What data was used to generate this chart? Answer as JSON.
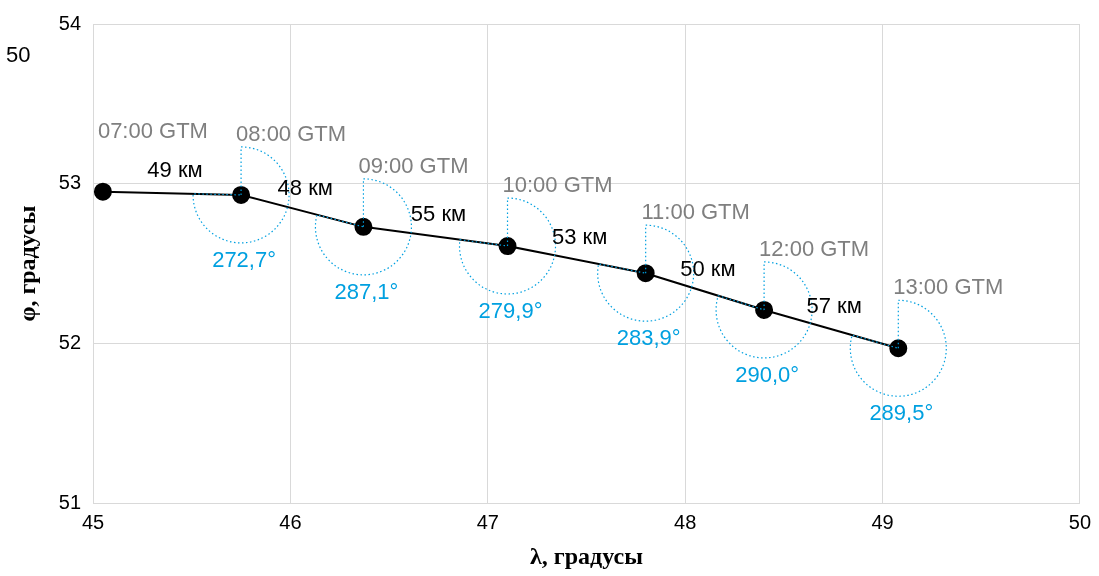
{
  "chart_data": {
    "type": "line",
    "xlabel": "λ, градусы",
    "ylabel": "φ, градусы",
    "xlim": [
      45,
      50
    ],
    "xticks": [
      45,
      46,
      47,
      48,
      49,
      50
    ],
    "ylim": [
      51,
      54
    ],
    "yticks": [
      51,
      52,
      53,
      54
    ],
    "grid": true,
    "legend": false,
    "marker": "circle",
    "line_style": "solid",
    "series": [
      {
        "color": "#000000",
        "x": [
          45.05,
          45.75,
          46.37,
          47.1,
          47.8,
          48.4,
          49.08
        ],
        "values": [
          52.95,
          52.93,
          52.73,
          52.61,
          52.44,
          52.21,
          51.97
        ]
      }
    ],
    "annotations": [
      {
        "text": "07:00 GTM",
        "x": 45.05,
        "y": 52.95
      },
      {
        "text": "08:00 GTM",
        "x": 45.75,
        "y": 52.93
      },
      {
        "text": "09:00 GTM",
        "x": 46.37,
        "y": 52.73
      },
      {
        "text": "10:00 GTM",
        "x": 47.1,
        "y": 52.61
      },
      {
        "text": "11:00 GTM",
        "x": 47.8,
        "y": 52.44
      },
      {
        "text": "12:00 GTM",
        "x": 48.4,
        "y": 52.21
      },
      {
        "text": "13:00 GTM",
        "x": 49.08,
        "y": 51.97
      },
      {
        "text": "49 км",
        "x": 45.4,
        "y": 52.94
      },
      {
        "text": "48 км",
        "x": 46.06,
        "y": 52.83
      },
      {
        "text": "55 км",
        "x": 46.735,
        "y": 52.67
      },
      {
        "text": "53 км",
        "x": 47.45,
        "y": 52.525
      },
      {
        "text": "50 км",
        "x": 48.1,
        "y": 52.325
      },
      {
        "text": "57 км",
        "x": 48.74,
        "y": 52.09
      },
      {
        "text": "272,7°",
        "x": 45.75,
        "y": 52.93
      },
      {
        "text": "287,1°",
        "x": 46.37,
        "y": 52.73
      },
      {
        "text": "279,9°",
        "x": 47.1,
        "y": 52.61
      },
      {
        "text": "283,9°",
        "x": 47.8,
        "y": 52.44
      },
      {
        "text": "290,0°",
        "x": 48.4,
        "y": 52.21
      },
      {
        "text": "289,5°",
        "x": 49.08,
        "y": 51.97
      },
      "50"
    ]
  }
}
